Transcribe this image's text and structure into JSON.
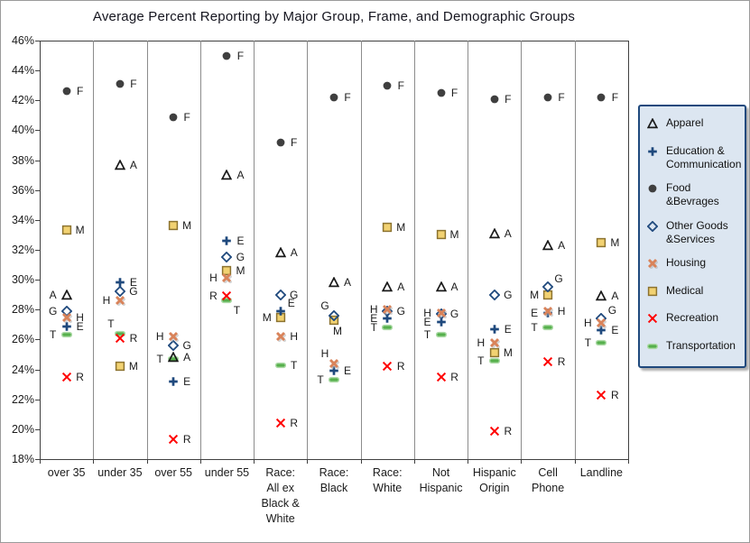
{
  "chart_data": {
    "type": "scatter",
    "title": "Average Percent Reporting by Major Group, Frame, and  Demographic Groups",
    "xlabel": "",
    "ylabel": "",
    "ylim": [
      18,
      46
    ],
    "ytick_step": 2,
    "grid": "vertical-category-separators-only",
    "legend_position": "right",
    "yticks": [
      {
        "v": 46,
        "label": "46%"
      },
      {
        "v": 44,
        "label": "44%"
      },
      {
        "v": 42,
        "label": "42%"
      },
      {
        "v": 40,
        "label": "40%"
      },
      {
        "v": 38,
        "label": "38%"
      },
      {
        "v": 36,
        "label": "36%"
      },
      {
        "v": 34,
        "label": "34%"
      },
      {
        "v": 32,
        "label": "32%"
      },
      {
        "v": 30,
        "label": "30%"
      },
      {
        "v": 28,
        "label": "28%"
      },
      {
        "v": 26,
        "label": "26%"
      },
      {
        "v": 24,
        "label": "24%"
      },
      {
        "v": 22,
        "label": "22%"
      },
      {
        "v": 20,
        "label": "20%"
      },
      {
        "v": 18,
        "label": "18%"
      }
    ],
    "categories": [
      {
        "label_lines": [
          "over 35"
        ]
      },
      {
        "label_lines": [
          "under 35"
        ]
      },
      {
        "label_lines": [
          "over 55"
        ]
      },
      {
        "label_lines": [
          "under 55"
        ]
      },
      {
        "label_lines": [
          "Race:",
          "All ex",
          "Black &",
          "White"
        ]
      },
      {
        "label_lines": [
          "Race:",
          "Black"
        ]
      },
      {
        "label_lines": [
          "Race:",
          "White"
        ]
      },
      {
        "label_lines": [
          "Not",
          "Hispanic"
        ]
      },
      {
        "label_lines": [
          "Hispanic",
          "Origin"
        ]
      },
      {
        "label_lines": [
          "Cell",
          "Phone"
        ]
      },
      {
        "label_lines": [
          "Landline"
        ]
      }
    ],
    "colors": {
      "navy": "#1F497D",
      "apparel": "#1A1A1A",
      "food": "#3F3F3F",
      "housing": "#D9835A",
      "medical_fill": "#F2D272",
      "medical_border": "#8C7330",
      "recreation": "#FF0000",
      "transport_fill": "#56B04C",
      "transport_border": "#AEDBA8",
      "legend_bg": "#DCE6F1",
      "legend_border": "#1F497D",
      "grid": "#8C8C8C",
      "axis": "#404040"
    },
    "draw_order": [
      "M",
      "G",
      "E",
      "H",
      "T",
      "A",
      "R",
      "F"
    ],
    "series": [
      {
        "key": "A",
        "name": "Apparel",
        "marker": "triangle-open",
        "icon": "apparel-triangle-icon",
        "values": [
          29.0,
          37.7,
          24.8,
          37.0,
          31.8,
          29.8,
          29.5,
          29.5,
          33.1,
          32.3,
          28.9
        ],
        "label_sides": [
          "left",
          "right",
          "right",
          "right",
          "right",
          "right",
          "right",
          "right",
          "right",
          "right",
          "right"
        ]
      },
      {
        "key": "E",
        "name": "Education & Communication",
        "marker": "plus",
        "icon": "education-plus-icon",
        "values": [
          26.9,
          29.8,
          23.2,
          32.6,
          27.9,
          23.9,
          27.4,
          27.2,
          26.7,
          27.8,
          26.6
        ],
        "label_sides": [
          "right",
          "right",
          "right",
          "right",
          "upper-right",
          "right",
          "left",
          "left",
          "right",
          "left",
          "right"
        ]
      },
      {
        "key": "F",
        "name": "Food &Bevrages",
        "marker": "circle-filled",
        "icon": "food-circle-icon",
        "values": [
          42.6,
          43.1,
          40.9,
          45.0,
          39.2,
          42.2,
          43.0,
          42.5,
          42.1,
          42.2,
          42.2
        ],
        "label_sides": [
          "right",
          "right",
          "right",
          "right",
          "right",
          "right",
          "right",
          "right",
          "right",
          "right",
          "right"
        ]
      },
      {
        "key": "G",
        "name": "Other Goods &Services",
        "marker": "diamond-open",
        "icon": "other-goods-diamond-icon",
        "values": [
          27.9,
          29.2,
          25.6,
          31.5,
          29.0,
          27.6,
          27.9,
          27.7,
          29.0,
          29.5,
          27.4
        ],
        "label_sides": [
          "left",
          "right",
          "right",
          "right",
          "right",
          "above-left",
          "right",
          "right",
          "right",
          "upper-right",
          "upper-right"
        ]
      },
      {
        "key": "H",
        "name": "Housing",
        "marker": "x-thick",
        "icon": "housing-x-icon",
        "values": [
          27.5,
          28.6,
          26.2,
          30.1,
          26.2,
          24.4,
          28.0,
          27.8,
          25.8,
          27.9,
          27.1
        ],
        "label_sides": [
          "right",
          "left",
          "left",
          "left",
          "right",
          "above-left",
          "left",
          "left",
          "left",
          "right",
          "left"
        ]
      },
      {
        "key": "M",
        "name": "Medical",
        "marker": "square-filled",
        "icon": "medical-square-icon",
        "values": [
          33.3,
          24.2,
          33.6,
          30.6,
          27.5,
          27.3,
          33.5,
          33.0,
          25.1,
          29.0,
          32.5
        ],
        "label_sides": [
          "right",
          "right",
          "right",
          "right",
          "left",
          "below",
          "right",
          "right",
          "right",
          "left",
          "right"
        ]
      },
      {
        "key": "R",
        "name": "Recreation",
        "marker": "x-thin",
        "icon": "recreation-x-icon",
        "values": [
          23.5,
          26.1,
          19.3,
          28.9,
          20.4,
          null,
          24.2,
          23.5,
          19.9,
          24.5,
          22.3
        ],
        "label_sides": [
          "right",
          "right",
          "right",
          "left",
          "right",
          null,
          "right",
          "right",
          "right",
          "right",
          "right"
        ]
      },
      {
        "key": "T",
        "name": "Transportation",
        "marker": "dash",
        "icon": "transportation-dash-icon",
        "values": [
          26.3,
          26.4,
          24.7,
          28.6,
          24.3,
          23.3,
          26.8,
          26.3,
          24.6,
          26.8,
          25.8
        ],
        "label_sides": [
          "left",
          "above-left",
          "left",
          "below-right",
          "right",
          "left",
          "left",
          "left",
          "left",
          "left",
          "left"
        ]
      }
    ],
    "legend": {
      "items": [
        {
          "series": "A",
          "lines": [
            "Apparel"
          ]
        },
        {
          "series": "E",
          "lines": [
            "Education &",
            "Communication"
          ]
        },
        {
          "series": "F",
          "lines": [
            "Food",
            "&Bevrages"
          ]
        },
        {
          "series": "G",
          "lines": [
            "Other Goods",
            "&Services"
          ]
        },
        {
          "series": "H",
          "lines": [
            "Housing"
          ]
        },
        {
          "series": "M",
          "lines": [
            "Medical"
          ]
        },
        {
          "series": "R",
          "lines": [
            "Recreation"
          ]
        },
        {
          "series": "T",
          "lines": [
            "Transportation"
          ]
        }
      ]
    }
  }
}
